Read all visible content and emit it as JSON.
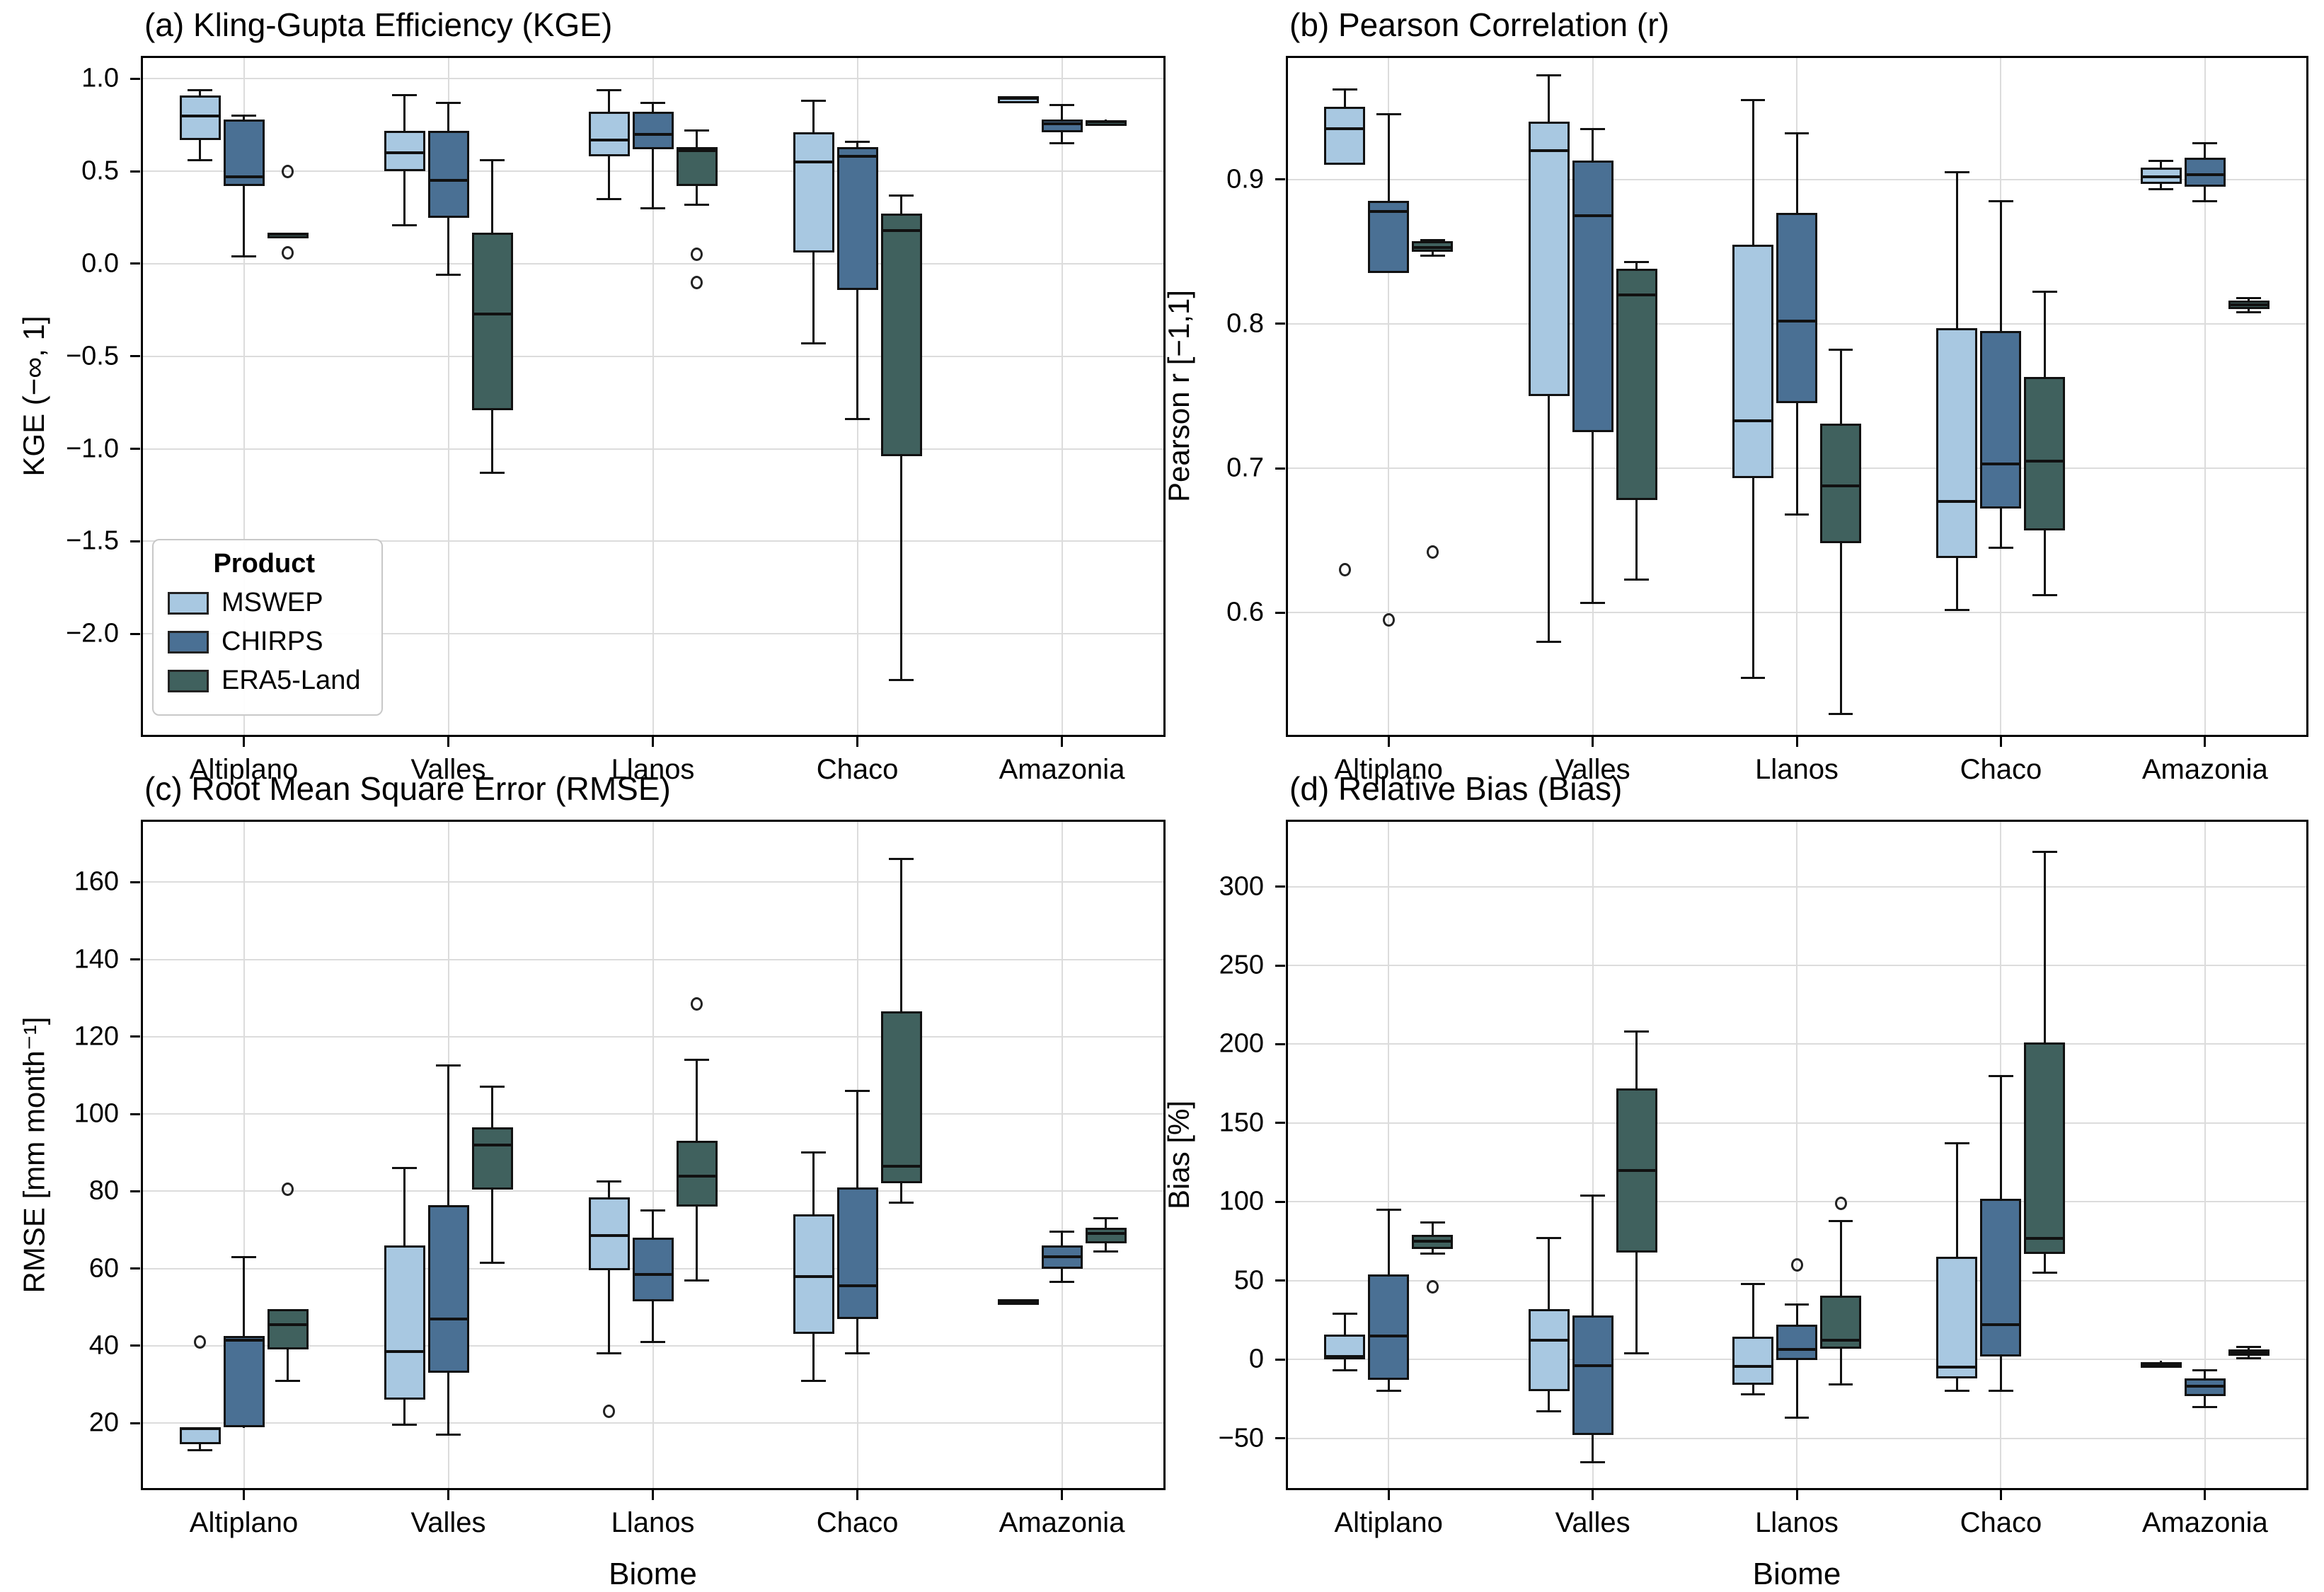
{
  "figure": {
    "xlabel": "Biome",
    "categories": [
      "Altiplano",
      "Valles",
      "Llanos",
      "Chaco",
      "Amazonia"
    ]
  },
  "legend": {
    "title": "Product",
    "items": [
      {
        "label": "MSWEP",
        "color": "#a8c8e1"
      },
      {
        "label": "CHIRPS",
        "color": "#4a7094"
      },
      {
        "label": "ERA5-Land",
        "color": "#40615e"
      }
    ]
  },
  "colors": {
    "mswep": "#a8c8e1",
    "chirps": "#4a7094",
    "era5_land": "#40615e",
    "grid": "#dcdcdc",
    "box_edge": "#111111"
  },
  "chart_data": [
    {
      "id": "a",
      "type": "boxplot",
      "title": "(a) Kling-Gupta Efficiency (KGE)",
      "ylabel": "KGE (−∞, 1]",
      "xlabel": "",
      "ylim": [
        -2.55,
        1.12
      ],
      "grid": true,
      "categories": [
        "Altiplano",
        "Valles",
        "Llanos",
        "Chaco",
        "Amazonia"
      ],
      "yticks": [
        {
          "v": 1.0,
          "label": "1.0"
        },
        {
          "v": 0.5,
          "label": "0.5"
        },
        {
          "v": 0.0,
          "label": "0.0"
        },
        {
          "v": -0.5,
          "label": "−0.5"
        },
        {
          "v": -1.0,
          "label": "−1.0"
        },
        {
          "v": -1.5,
          "label": "−1.5"
        },
        {
          "v": -2.0,
          "label": "−2.0"
        }
      ],
      "series": [
        {
          "name": "MSWEP",
          "color": "#a8c8e1",
          "boxes": [
            {
              "lo": 0.56,
              "q1": 0.67,
              "med": 0.8,
              "q3": 0.91,
              "hi": 0.94,
              "out": []
            },
            {
              "lo": 0.21,
              "q1": 0.5,
              "med": 0.6,
              "q3": 0.72,
              "hi": 0.91,
              "out": []
            },
            {
              "lo": 0.35,
              "q1": 0.58,
              "med": 0.67,
              "q3": 0.82,
              "hi": 0.94,
              "out": []
            },
            {
              "lo": -0.43,
              "q1": 0.06,
              "med": 0.55,
              "q3": 0.71,
              "hi": 0.88,
              "out": []
            },
            {
              "lo": 0.9,
              "q1": 0.9,
              "med": 0.9,
              "q3": 0.9,
              "hi": 0.9,
              "out": []
            }
          ]
        },
        {
          "name": "CHIRPS",
          "color": "#4a7094",
          "boxes": [
            {
              "lo": 0.04,
              "q1": 0.42,
              "med": 0.47,
              "q3": 0.78,
              "hi": 0.8,
              "out": []
            },
            {
              "lo": -0.06,
              "q1": 0.25,
              "med": 0.45,
              "q3": 0.72,
              "hi": 0.87,
              "out": []
            },
            {
              "lo": 0.3,
              "q1": 0.62,
              "med": 0.7,
              "q3": 0.82,
              "hi": 0.87,
              "out": []
            },
            {
              "lo": -0.84,
              "q1": -0.14,
              "med": 0.58,
              "q3": 0.63,
              "hi": 0.66,
              "out": []
            },
            {
              "lo": 0.65,
              "q1": 0.71,
              "med": 0.755,
              "q3": 0.78,
              "hi": 0.86,
              "out": []
            }
          ]
        },
        {
          "name": "ERA5-Land",
          "color": "#40615e",
          "boxes": [
            {
              "lo": 0.15,
              "q1": 0.15,
              "med": 0.16,
              "q3": 0.17,
              "hi": 0.17,
              "out": [
                0.5,
                0.06
              ]
            },
            {
              "lo": -1.13,
              "q1": -0.79,
              "med": -0.27,
              "q3": 0.17,
              "hi": 0.56,
              "out": []
            },
            {
              "lo": 0.32,
              "q1": 0.42,
              "med": 0.61,
              "q3": 0.63,
              "hi": 0.72,
              "out": [
                0.05,
                -0.1
              ]
            },
            {
              "lo": -2.25,
              "q1": -1.04,
              "med": 0.18,
              "q3": 0.27,
              "hi": 0.37,
              "out": []
            },
            {
              "lo": 0.76,
              "q1": 0.765,
              "med": 0.77,
              "q3": 0.775,
              "hi": 0.78,
              "out": []
            }
          ]
        }
      ]
    },
    {
      "id": "b",
      "type": "boxplot",
      "title": "(b) Pearson Correlation (r)",
      "ylabel": "Pearson r [−1,1]",
      "xlabel": "",
      "ylim": [
        0.515,
        0.985
      ],
      "grid": true,
      "categories": [
        "Altiplano",
        "Valles",
        "Llanos",
        "Chaco",
        "Amazonia"
      ],
      "yticks": [
        {
          "v": 0.9,
          "label": "0.9"
        },
        {
          "v": 0.8,
          "label": "0.8"
        },
        {
          "v": 0.7,
          "label": "0.7"
        },
        {
          "v": 0.6,
          "label": "0.6"
        }
      ],
      "series": [
        {
          "name": "MSWEP",
          "color": "#a8c8e1",
          "boxes": [
            {
              "lo": 0.91,
              "q1": 0.91,
              "med": 0.935,
              "q3": 0.95,
              "hi": 0.962,
              "out": [
                0.63
              ]
            },
            {
              "lo": 0.58,
              "q1": 0.75,
              "med": 0.92,
              "q3": 0.94,
              "hi": 0.972,
              "out": []
            },
            {
              "lo": 0.555,
              "q1": 0.693,
              "med": 0.733,
              "q3": 0.855,
              "hi": 0.955,
              "out": []
            },
            {
              "lo": 0.602,
              "q1": 0.638,
              "med": 0.677,
              "q3": 0.797,
              "hi": 0.905,
              "out": []
            },
            {
              "lo": 0.893,
              "q1": 0.897,
              "med": 0.902,
              "q3": 0.908,
              "hi": 0.913,
              "out": []
            }
          ]
        },
        {
          "name": "CHIRPS",
          "color": "#4a7094",
          "boxes": [
            {
              "lo": 0.835,
              "q1": 0.835,
              "med": 0.878,
              "q3": 0.885,
              "hi": 0.945,
              "out": [
                0.595
              ]
            },
            {
              "lo": 0.607,
              "q1": 0.725,
              "med": 0.875,
              "q3": 0.913,
              "hi": 0.935,
              "out": []
            },
            {
              "lo": 0.668,
              "q1": 0.745,
              "med": 0.802,
              "q3": 0.877,
              "hi": 0.932,
              "out": []
            },
            {
              "lo": 0.645,
              "q1": 0.672,
              "med": 0.703,
              "q3": 0.795,
              "hi": 0.885,
              "out": []
            },
            {
              "lo": 0.885,
              "q1": 0.895,
              "med": 0.903,
              "q3": 0.915,
              "hi": 0.925,
              "out": []
            }
          ]
        },
        {
          "name": "ERA5-Land",
          "color": "#40615e",
          "boxes": [
            {
              "lo": 0.847,
              "q1": 0.85,
              "med": 0.853,
              "q3": 0.857,
              "hi": 0.858,
              "out": [
                0.642
              ]
            },
            {
              "lo": 0.623,
              "q1": 0.678,
              "med": 0.82,
              "q3": 0.838,
              "hi": 0.843,
              "out": []
            },
            {
              "lo": 0.53,
              "q1": 0.648,
              "med": 0.688,
              "q3": 0.731,
              "hi": 0.782,
              "out": []
            },
            {
              "lo": 0.612,
              "q1": 0.657,
              "med": 0.705,
              "q3": 0.763,
              "hi": 0.822,
              "out": []
            },
            {
              "lo": 0.808,
              "q1": 0.81,
              "med": 0.813,
              "q3": 0.816,
              "hi": 0.818,
              "out": []
            }
          ]
        }
      ]
    },
    {
      "id": "c",
      "type": "boxplot",
      "title": "(c) Root Mean Square Error (RMSE)",
      "ylabel": "RMSE [mm month⁻¹]",
      "xlabel": "Biome",
      "ylim": [
        3,
        176
      ],
      "grid": true,
      "categories": [
        "Altiplano",
        "Valles",
        "Llanos",
        "Chaco",
        "Amazonia"
      ],
      "yticks": [
        {
          "v": 160,
          "label": "160"
        },
        {
          "v": 140,
          "label": "140"
        },
        {
          "v": 120,
          "label": "120"
        },
        {
          "v": 100,
          "label": "100"
        },
        {
          "v": 80,
          "label": "80"
        },
        {
          "v": 60,
          "label": "60"
        },
        {
          "v": 40,
          "label": "40"
        },
        {
          "v": 20,
          "label": "20"
        }
      ],
      "series": [
        {
          "name": "MSWEP",
          "color": "#a8c8e1",
          "boxes": [
            {
              "lo": 13,
              "q1": 14.5,
              "med": 18.5,
              "q3": 19,
              "hi": 19,
              "out": [
                41
              ]
            },
            {
              "lo": 19.5,
              "q1": 26,
              "med": 38.5,
              "q3": 66,
              "hi": 86,
              "out": []
            },
            {
              "lo": 38,
              "q1": 59.5,
              "med": 68.5,
              "q3": 78.5,
              "hi": 82.5,
              "out": [
                23
              ]
            },
            {
              "lo": 31,
              "q1": 43,
              "med": 58,
              "q3": 74,
              "hi": 90,
              "out": []
            },
            {
              "lo": 51,
              "q1": 51,
              "med": 51.5,
              "q3": 52,
              "hi": 52,
              "out": []
            }
          ]
        },
        {
          "name": "CHIRPS",
          "color": "#4a7094",
          "boxes": [
            {
              "lo": 18.7,
              "q1": 19,
              "med": 41.5,
              "q3": 42.5,
              "hi": 63,
              "out": []
            },
            {
              "lo": 17,
              "q1": 33,
              "med": 47,
              "q3": 76.5,
              "hi": 112.5,
              "out": []
            },
            {
              "lo": 41,
              "q1": 51.5,
              "med": 58.5,
              "q3": 68,
              "hi": 75,
              "out": []
            },
            {
              "lo": 38,
              "q1": 47,
              "med": 55.5,
              "q3": 81,
              "hi": 106,
              "out": []
            },
            {
              "lo": 56.5,
              "q1": 60,
              "med": 63,
              "q3": 66,
              "hi": 69.5,
              "out": []
            }
          ]
        },
        {
          "name": "ERA5-Land",
          "color": "#40615e",
          "boxes": [
            {
              "lo": 31,
              "q1": 39,
              "med": 45.5,
              "q3": 49.5,
              "hi": 49.5,
              "out": [
                80.5
              ]
            },
            {
              "lo": 61.5,
              "q1": 80.5,
              "med": 92,
              "q3": 96.5,
              "hi": 107,
              "out": []
            },
            {
              "lo": 57,
              "q1": 76,
              "med": 84,
              "q3": 93,
              "hi": 114,
              "out": [
                128.5
              ]
            },
            {
              "lo": 77,
              "q1": 82,
              "med": 86.5,
              "q3": 126.5,
              "hi": 166,
              "out": []
            },
            {
              "lo": 64.5,
              "q1": 66.5,
              "med": 69,
              "q3": 70.5,
              "hi": 73,
              "out": []
            }
          ]
        }
      ]
    },
    {
      "id": "d",
      "type": "boxplot",
      "title": "(d) Relative Bias (Bias)",
      "ylabel": "Bias [%]",
      "xlabel": "Biome",
      "ylim": [
        -82,
        342
      ],
      "grid": true,
      "categories": [
        "Altiplano",
        "Valles",
        "Llanos",
        "Chaco",
        "Amazonia"
      ],
      "yticks": [
        {
          "v": 300,
          "label": "300"
        },
        {
          "v": 250,
          "label": "250"
        },
        {
          "v": 200,
          "label": "200"
        },
        {
          "v": 150,
          "label": "150"
        },
        {
          "v": 100,
          "label": "100"
        },
        {
          "v": 50,
          "label": "50"
        },
        {
          "v": 0,
          "label": "0"
        },
        {
          "v": -50,
          "label": "−50"
        }
      ],
      "series": [
        {
          "name": "MSWEP",
          "color": "#a8c8e1",
          "boxes": [
            {
              "lo": -7,
              "q1": 0,
              "med": 2,
              "q3": 16,
              "hi": 29,
              "out": []
            },
            {
              "lo": -33,
              "q1": -20,
              "med": 12,
              "q3": 32,
              "hi": 77,
              "out": []
            },
            {
              "lo": -22,
              "q1": -16,
              "med": -4.5,
              "q3": 14.5,
              "hi": 48,
              "out": []
            },
            {
              "lo": -20,
              "q1": -12,
              "med": -5,
              "q3": 65,
              "hi": 137,
              "out": []
            },
            {
              "lo": -5,
              "q1": -4.5,
              "med": -3,
              "q3": -1.5,
              "hi": -1,
              "out": []
            }
          ]
        },
        {
          "name": "CHIRPS",
          "color": "#4a7094",
          "boxes": [
            {
              "lo": -20,
              "q1": -13,
              "med": 15,
              "q3": 54,
              "hi": 95,
              "out": []
            },
            {
              "lo": -65,
              "q1": -48,
              "med": -4,
              "q3": 28,
              "hi": 104,
              "out": []
            },
            {
              "lo": -37,
              "q1": -0.5,
              "med": 6.5,
              "q3": 22,
              "hi": 35,
              "out": [
                60
              ]
            },
            {
              "lo": -20,
              "q1": 2,
              "med": 22,
              "q3": 102,
              "hi": 180,
              "out": []
            },
            {
              "lo": -30,
              "q1": -23,
              "med": -17,
              "q3": -12,
              "hi": -7,
              "out": []
            }
          ]
        },
        {
          "name": "ERA5-Land",
          "color": "#40615e",
          "boxes": [
            {
              "lo": 67,
              "q1": 70,
              "med": 75,
              "q3": 79,
              "hi": 87,
              "out": [
                46
              ]
            },
            {
              "lo": 4,
              "q1": 68,
              "med": 120,
              "q3": 172,
              "hi": 208,
              "out": []
            },
            {
              "lo": -16,
              "q1": 7,
              "med": 12,
              "q3": 40.5,
              "hi": 88,
              "out": [
                99
              ]
            },
            {
              "lo": 55,
              "q1": 67,
              "med": 77,
              "q3": 201,
              "hi": 322,
              "out": []
            },
            {
              "lo": 1,
              "q1": 2.5,
              "med": 4,
              "q3": 6.5,
              "hi": 8,
              "out": []
            }
          ]
        }
      ]
    }
  ]
}
